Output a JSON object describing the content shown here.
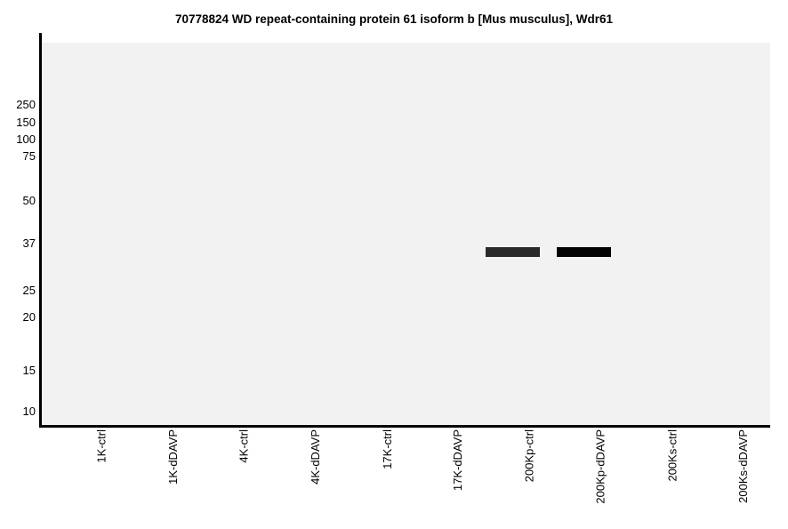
{
  "chart_data": {
    "type": "gel-blot",
    "title": "70778824 WD repeat-containing protein 61 isoform b [Mus musculus], Wdr61",
    "xlabel": "",
    "ylabel": "",
    "grid": false,
    "legend": "none",
    "mw_markers": [
      {
        "value": "250",
        "y_frac": 0.163
      },
      {
        "value": "150",
        "y_frac": 0.209
      },
      {
        "value": "100",
        "y_frac": 0.253
      },
      {
        "value": "75",
        "y_frac": 0.298
      },
      {
        "value": "50",
        "y_frac": 0.414
      },
      {
        "value": "37",
        "y_frac": 0.526
      },
      {
        "value": "25",
        "y_frac": 0.649
      },
      {
        "value": "20",
        "y_frac": 0.719
      },
      {
        "value": "15",
        "y_frac": 0.858
      },
      {
        "value": "10",
        "y_frac": 0.965
      }
    ],
    "lanes": [
      "1K-ctrl",
      "1K-dDAVP",
      "4K-ctrl",
      "4K-dDAVP",
      "17K-ctrl",
      "17K-dDAVP",
      "200Kp-ctrl",
      "200Kp-dDAVP",
      "200Ks-ctrl",
      "200Ks-dDAVP"
    ],
    "bands": [
      {
        "lane": "200Kp-ctrl",
        "lane_index": 6,
        "approx_mw": 33,
        "y_frac": 0.548,
        "color": "#2a2a2a"
      },
      {
        "lane": "200Kp-dDAVP",
        "lane_index": 7,
        "approx_mw": 33,
        "y_frac": 0.548,
        "color": "#030303"
      }
    ],
    "colors": {
      "plot_background": "#f2f2f2",
      "axis": "#000000",
      "text": "#000000",
      "page_background": "#ffffff"
    }
  }
}
